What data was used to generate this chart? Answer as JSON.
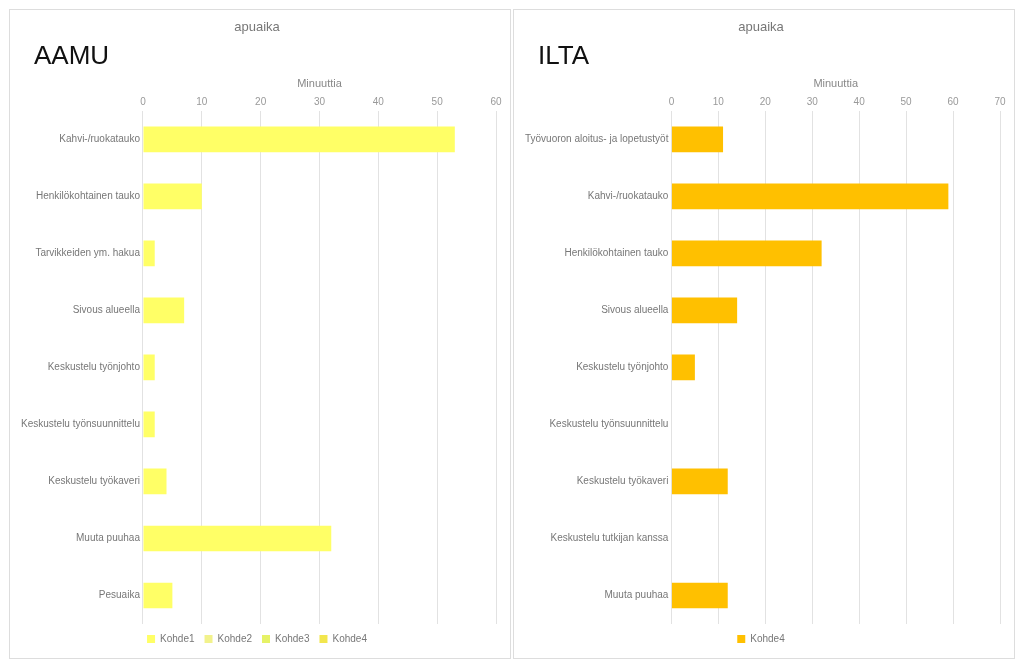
{
  "chart_data": [
    {
      "type": "bar",
      "orientation": "horizontal",
      "stacked": true,
      "title": "apuaika",
      "xlabel": "Minuuttia",
      "annotations": [
        "AAMU"
      ],
      "categories": [
        "Kahvi-/ruokatauko",
        "Henkilökohtainen tauko",
        "Tarvikkeiden ym. hakua",
        "Sivous alueella",
        "Keskustelu työnjohto",
        "Keskustelu työnsuunnittelu",
        "Keskustelu työkaveri",
        "Muuta puuhaa",
        "Pesuaika"
      ],
      "series": [
        {
          "name": "Kohde1",
          "color": "#ffff66",
          "values": [
            53,
            10,
            2,
            7,
            2,
            2,
            4,
            32,
            5
          ]
        },
        {
          "name": "Kohde2",
          "color": "#f2f28c",
          "values": [
            null,
            null,
            null,
            null,
            null,
            null,
            null,
            null,
            null
          ]
        },
        {
          "name": "Kohde3",
          "color": "#e6f266",
          "values": [
            null,
            null,
            null,
            null,
            null,
            null,
            null,
            null,
            null
          ]
        },
        {
          "name": "Kohde4",
          "color": "#f2e64d",
          "values": [
            null,
            null,
            null,
            null,
            null,
            null,
            null,
            null,
            null
          ]
        }
      ],
      "xlim": [
        0,
        60
      ],
      "xticks": [
        0,
        10,
        20,
        30,
        40,
        50,
        60
      ],
      "grid": "x",
      "legend": "bottom"
    },
    {
      "type": "bar",
      "orientation": "horizontal",
      "title": "apuaika",
      "xlabel": "Minuuttia",
      "annotations": [
        "ILTA"
      ],
      "categories": [
        "Työvuoron aloitus- ja lopetustyöt",
        "Kahvi-/ruokatauko",
        "Henkilökohtainen tauko",
        "Sivous alueella",
        "Keskustelu työnjohto",
        "Keskustelu työnsuunnittelu",
        "Keskustelu työkaveri",
        "Keskustelu tutkijan kanssa",
        "Muuta puuhaa"
      ],
      "series": [
        {
          "name": "Kohde4",
          "color": "#ffc000",
          "values": [
            11,
            59,
            32,
            14,
            5,
            null,
            12,
            null,
            12
          ]
        }
      ],
      "xlim": [
        0,
        70
      ],
      "xticks": [
        0,
        10,
        20,
        30,
        40,
        50,
        60,
        70
      ],
      "grid": "x",
      "legend": "bottom"
    }
  ]
}
